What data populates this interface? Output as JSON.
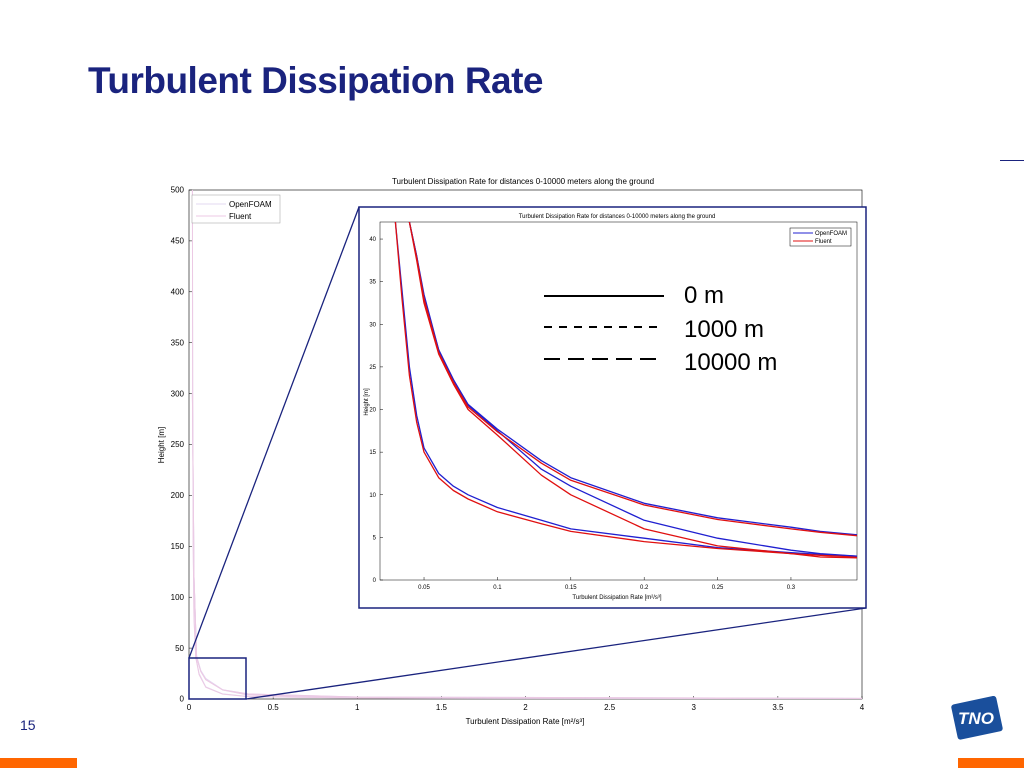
{
  "slide": {
    "title": "Turbulent Dissipation Rate",
    "page_number": "15",
    "logo_text": "TNO"
  },
  "line_style_legend": [
    {
      "label": "0 m",
      "style": "solid"
    },
    {
      "label": "1000 m",
      "style": "short-dash"
    },
    {
      "label": "10000 m",
      "style": "long-dash"
    }
  ],
  "chart_data": [
    {
      "type": "line",
      "title": "Turbulent Dissipation Rate for distances 0-10000 meters along the ground",
      "xlabel": "Turbulent Dissipation Rate [m²/s³]",
      "ylabel": "Height [m]",
      "xlim": [
        0,
        4
      ],
      "ylim": [
        0,
        500
      ],
      "x_ticks": [
        "0",
        "0.5",
        "1",
        "1.5",
        "2",
        "2.5",
        "3",
        "3.5",
        "4"
      ],
      "y_ticks": [
        "0",
        "50",
        "100",
        "150",
        "200",
        "250",
        "300",
        "350",
        "400",
        "450",
        "500"
      ],
      "legend": {
        "placement": "top-left",
        "entries": [
          "OpenFOAM",
          "Fluent"
        ]
      },
      "colors": {
        "OpenFOAM": "#e3d8f0",
        "Fluent": "#ecc9e4"
      },
      "series": [
        {
          "name": "OpenFOAM",
          "distance": "0 m",
          "points": [
            [
              0.02,
              500
            ],
            [
              0.022,
              300
            ],
            [
              0.025,
              150
            ],
            [
              0.03,
              80
            ],
            [
              0.04,
              42
            ],
            [
              0.06,
              25
            ],
            [
              0.1,
              12
            ],
            [
              0.2,
              5
            ],
            [
              0.35,
              2.5
            ],
            [
              1,
              1
            ],
            [
              4,
              0.3
            ]
          ]
        },
        {
          "name": "Fluent",
          "distance": "0 m",
          "points": [
            [
              0.02,
              500
            ],
            [
              0.022,
              300
            ],
            [
              0.025,
              150
            ],
            [
              0.03,
              80
            ],
            [
              0.04,
              41
            ],
            [
              0.06,
              24
            ],
            [
              0.1,
              11.5
            ],
            [
              0.2,
              4.8
            ],
            [
              0.35,
              2.4
            ],
            [
              1,
              1
            ],
            [
              4,
              0.3
            ]
          ]
        },
        {
          "name": "OpenFOAM",
          "distance": "1000 m",
          "points": [
            [
              0.02,
              300
            ],
            [
              0.03,
              120
            ],
            [
              0.045,
              42
            ],
            [
              0.07,
              28
            ],
            [
              0.1,
              20
            ],
            [
              0.2,
              9
            ],
            [
              0.35,
              4
            ],
            [
              1,
              1.5
            ],
            [
              4,
              0.5
            ]
          ]
        },
        {
          "name": "Fluent",
          "distance": "1000 m",
          "points": [
            [
              0.02,
              300
            ],
            [
              0.03,
              120
            ],
            [
              0.045,
              41
            ],
            [
              0.07,
              27
            ],
            [
              0.1,
              19
            ],
            [
              0.2,
              8.8
            ],
            [
              0.35,
              3.9
            ],
            [
              1,
              1.5
            ],
            [
              4,
              0.5
            ]
          ]
        },
        {
          "name": "OpenFOAM",
          "distance": "10000 m",
          "points": [
            [
              0.02,
              300
            ],
            [
              0.03,
              120
            ],
            [
              0.045,
              42
            ],
            [
              0.07,
              28
            ],
            [
              0.1,
              20
            ],
            [
              0.2,
              9
            ],
            [
              0.35,
              5
            ],
            [
              1,
              2
            ],
            [
              4,
              0.6
            ]
          ]
        },
        {
          "name": "Fluent",
          "distance": "10000 m",
          "points": [
            [
              0.02,
              300
            ],
            [
              0.03,
              120
            ],
            [
              0.045,
              41
            ],
            [
              0.07,
              27
            ],
            [
              0.1,
              19
            ],
            [
              0.2,
              8.9
            ],
            [
              0.35,
              5
            ],
            [
              1,
              2
            ],
            [
              4,
              0.6
            ]
          ]
        }
      ]
    },
    {
      "type": "line",
      "title": "Turbulent Dissipation Rate for distances 0-10000 meters along the ground",
      "xlabel": "Turbulent Dissipation Rate [m²/s³]",
      "ylabel": "Height [m]",
      "xlim": [
        0.02,
        0.345
      ],
      "ylim": [
        0,
        42
      ],
      "x_ticks": [
        "0.05",
        "0.1",
        "0.15",
        "0.2",
        "0.25",
        "0.3"
      ],
      "y_ticks": [
        "0",
        "5",
        "10",
        "15",
        "20",
        "25",
        "30",
        "35",
        "40"
      ],
      "legend": {
        "placement": "top-right",
        "entries": [
          "OpenFOAM",
          "Fluent"
        ]
      },
      "colors": {
        "OpenFOAM": "#2020d0",
        "Fluent": "#e01010"
      },
      "series": [
        {
          "name": "OpenFOAM",
          "distance": "0 m",
          "points": [
            [
              0.0305,
              42
            ],
            [
              0.035,
              34
            ],
            [
              0.04,
              25
            ],
            [
              0.045,
              19.3
            ],
            [
              0.05,
              15.5
            ],
            [
              0.06,
              12.5
            ],
            [
              0.07,
              11
            ],
            [
              0.08,
              10
            ],
            [
              0.1,
              8.5
            ],
            [
              0.13,
              7
            ],
            [
              0.15,
              6
            ],
            [
              0.2,
              4.9
            ],
            [
              0.25,
              3.8
            ],
            [
              0.3,
              3.2
            ],
            [
              0.32,
              3
            ],
            [
              0.345,
              2.8
            ]
          ]
        },
        {
          "name": "Fluent",
          "distance": "0 m",
          "points": [
            [
              0.0305,
              42
            ],
            [
              0.035,
              33
            ],
            [
              0.04,
              24
            ],
            [
              0.045,
              18.5
            ],
            [
              0.05,
              15
            ],
            [
              0.06,
              12
            ],
            [
              0.07,
              10.5
            ],
            [
              0.08,
              9.5
            ],
            [
              0.1,
              8
            ],
            [
              0.13,
              6.6
            ],
            [
              0.15,
              5.7
            ],
            [
              0.2,
              4.5
            ],
            [
              0.25,
              3.7
            ],
            [
              0.3,
              3.1
            ],
            [
              0.32,
              2.9
            ],
            [
              0.345,
              2.7
            ]
          ]
        },
        {
          "name": "OpenFOAM",
          "distance": "1000 m",
          "points": [
            [
              0.04,
              42
            ],
            [
              0.045,
              38
            ],
            [
              0.05,
              33
            ],
            [
              0.06,
              27
            ],
            [
              0.07,
              23.5
            ],
            [
              0.08,
              20.5
            ],
            [
              0.1,
              17.5
            ],
            [
              0.13,
              13
            ],
            [
              0.15,
              11
            ],
            [
              0.2,
              7
            ],
            [
              0.25,
              4.9
            ],
            [
              0.3,
              3.5
            ],
            [
              0.32,
              3.1
            ],
            [
              0.345,
              2.8
            ]
          ]
        },
        {
          "name": "Fluent",
          "distance": "1000 m",
          "points": [
            [
              0.04,
              42
            ],
            [
              0.045,
              37.5
            ],
            [
              0.05,
              32.5
            ],
            [
              0.06,
              26.5
            ],
            [
              0.07,
              23
            ],
            [
              0.08,
              20
            ],
            [
              0.1,
              17
            ],
            [
              0.13,
              12.3
            ],
            [
              0.15,
              10
            ],
            [
              0.2,
              6
            ],
            [
              0.25,
              4
            ],
            [
              0.3,
              3.1
            ],
            [
              0.32,
              2.7
            ],
            [
              0.345,
              2.6
            ]
          ]
        },
        {
          "name": "OpenFOAM",
          "distance": "10000 m",
          "points": [
            [
              0.04,
              42
            ],
            [
              0.045,
              38
            ],
            [
              0.05,
              33.5
            ],
            [
              0.06,
              27
            ],
            [
              0.07,
              23.5
            ],
            [
              0.08,
              20.6
            ],
            [
              0.1,
              17.7
            ],
            [
              0.13,
              14
            ],
            [
              0.15,
              12
            ],
            [
              0.2,
              9
            ],
            [
              0.25,
              7.3
            ],
            [
              0.3,
              6.2
            ],
            [
              0.32,
              5.7
            ],
            [
              0.345,
              5.3
            ]
          ]
        },
        {
          "name": "Fluent",
          "distance": "10000 m",
          "points": [
            [
              0.04,
              42
            ],
            [
              0.045,
              37.8
            ],
            [
              0.05,
              33
            ],
            [
              0.06,
              26.7
            ],
            [
              0.07,
              23.2
            ],
            [
              0.08,
              20.3
            ],
            [
              0.1,
              17.4
            ],
            [
              0.13,
              13.7
            ],
            [
              0.15,
              11.7
            ],
            [
              0.2,
              8.8
            ],
            [
              0.25,
              7.1
            ],
            [
              0.3,
              6
            ],
            [
              0.32,
              5.6
            ],
            [
              0.345,
              5.2
            ]
          ]
        }
      ]
    }
  ]
}
